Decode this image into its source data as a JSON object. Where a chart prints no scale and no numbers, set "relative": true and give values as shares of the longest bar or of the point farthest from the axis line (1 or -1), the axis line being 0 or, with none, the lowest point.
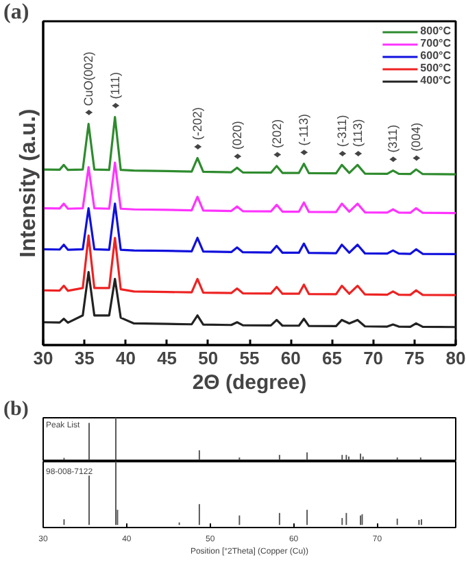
{
  "chart_data": [
    {
      "type": "line",
      "title": "(a)",
      "xlabel": "2Θ (degree)",
      "ylabel": "Intensity (a.u.)",
      "relative": true,
      "legend": "top right",
      "xlim": [
        30,
        80
      ],
      "xticks": [
        30,
        35,
        40,
        45,
        50,
        55,
        60,
        65,
        70,
        75,
        80
      ],
      "x": [
        30,
        32,
        32.5,
        33,
        34.8,
        35.5,
        36.2,
        38,
        38.7,
        39.4,
        41,
        45,
        48,
        48.7,
        49.4,
        52.8,
        53.5,
        54.2,
        57.6,
        58.3,
        59,
        61,
        61.6,
        62.2,
        65.5,
        66.2,
        67.1,
        68.1,
        69,
        71.7,
        72.4,
        73.1,
        74.5,
        75.2,
        76,
        80
      ],
      "series": [
        {
          "name": "800°C",
          "color": "#2e8b2e",
          "values": [
            0.77,
            0.769,
            0.79,
            0.768,
            0.77,
            0.97,
            0.77,
            0.768,
            1.0,
            0.768,
            0.765,
            0.763,
            0.761,
            0.82,
            0.76,
            0.758,
            0.778,
            0.757,
            0.756,
            0.785,
            0.755,
            0.755,
            0.795,
            0.754,
            0.753,
            0.79,
            0.755,
            0.79,
            0.752,
            0.751,
            0.765,
            0.751,
            0.75,
            0.77,
            0.75,
            0.749
          ]
        },
        {
          "name": "700°C",
          "color": "#ff33ff",
          "values": [
            0.6,
            0.599,
            0.62,
            0.598,
            0.6,
            0.78,
            0.6,
            0.598,
            0.8,
            0.598,
            0.595,
            0.593,
            0.591,
            0.65,
            0.59,
            0.588,
            0.608,
            0.587,
            0.586,
            0.615,
            0.585,
            0.585,
            0.625,
            0.584,
            0.583,
            0.62,
            0.585,
            0.62,
            0.582,
            0.581,
            0.595,
            0.581,
            0.58,
            0.6,
            0.58,
            0.579
          ]
        },
        {
          "name": "600°C",
          "color": "#1010dd",
          "values": [
            0.42,
            0.419,
            0.44,
            0.418,
            0.42,
            0.6,
            0.42,
            0.418,
            0.62,
            0.418,
            0.415,
            0.413,
            0.411,
            0.47,
            0.41,
            0.408,
            0.428,
            0.407,
            0.406,
            0.435,
            0.405,
            0.405,
            0.445,
            0.404,
            0.403,
            0.44,
            0.405,
            0.44,
            0.402,
            0.401,
            0.415,
            0.401,
            0.4,
            0.42,
            0.4,
            0.399
          ]
        },
        {
          "name": "500°C",
          "color": "#ee2222",
          "values": [
            0.24,
            0.239,
            0.26,
            0.238,
            0.25,
            0.48,
            0.25,
            0.25,
            0.47,
            0.245,
            0.235,
            0.233,
            0.231,
            0.29,
            0.23,
            0.228,
            0.248,
            0.227,
            0.226,
            0.255,
            0.225,
            0.225,
            0.265,
            0.224,
            0.223,
            0.26,
            0.225,
            0.26,
            0.222,
            0.221,
            0.235,
            0.221,
            0.22,
            0.24,
            0.22,
            0.219
          ]
        },
        {
          "name": "400°C",
          "color": "#222222",
          "values": [
            0.1,
            0.099,
            0.115,
            0.098,
            0.13,
            0.32,
            0.13,
            0.13,
            0.29,
            0.12,
            0.095,
            0.093,
            0.091,
            0.13,
            0.09,
            0.088,
            0.1,
            0.087,
            0.086,
            0.11,
            0.085,
            0.085,
            0.115,
            0.084,
            0.083,
            0.11,
            0.095,
            0.11,
            0.082,
            0.081,
            0.09,
            0.081,
            0.08,
            0.095,
            0.08,
            0.079
          ]
        }
      ],
      "annotations": [
        {
          "text": "♦ CuO(002)",
          "x": 35.5,
          "y": 0.97
        },
        {
          "text": "♦ (111)",
          "x": 38.7,
          "y": 1.0
        },
        {
          "text": "♦ (-202)",
          "x": 48.7,
          "y": 0.82
        },
        {
          "text": "♦ (020)",
          "x": 53.5,
          "y": 0.778
        },
        {
          "text": "♦ (202)",
          "x": 58.3,
          "y": 0.785
        },
        {
          "text": "♦ (-113)",
          "x": 61.6,
          "y": 0.795
        },
        {
          "text": "♦ (-311)",
          "x": 66.2,
          "y": 0.79
        },
        {
          "text": "♦ (113)",
          "x": 68.1,
          "y": 0.79
        },
        {
          "text": "♦ (311)",
          "x": 72.4,
          "y": 0.765
        },
        {
          "text": "♦ (004)",
          "x": 75.2,
          "y": 0.77
        }
      ]
    },
    {
      "type": "bar",
      "title": "(b)",
      "relative": true,
      "tick_labels": false,
      "xlim": [
        30,
        79.4
      ],
      "color": "#555555",
      "x": [
        32.5,
        35.5,
        38.7,
        48.7,
        53.5,
        58.3,
        61.6,
        65.8,
        66.3,
        66.6,
        68.0,
        68.3,
        72.4,
        75.2
      ],
      "values": [
        0.05,
        0.88,
        1.0,
        0.23,
        0.06,
        0.12,
        0.18,
        0.12,
        0.12,
        0.08,
        0.15,
        0.08,
        0.06,
        0.06
      ],
      "annotations": [
        "Peak List"
      ]
    },
    {
      "type": "bar",
      "relative": true,
      "tick_labels": "x",
      "xlim": [
        30,
        79.4
      ],
      "xticks": [
        30,
        40,
        50,
        60,
        70
      ],
      "xlabel": "Position [°2Theta] (Copper (Cu))",
      "color": "#555555",
      "x": [
        32.5,
        35.5,
        38.7,
        38.9,
        46.3,
        48.7,
        53.5,
        58.3,
        61.6,
        65.8,
        66.3,
        68.0,
        68.2,
        72.4,
        75.0,
        75.3
      ],
      "values": [
        0.09,
        0.78,
        1.0,
        0.24,
        0.04,
        0.33,
        0.15,
        0.19,
        0.24,
        0.11,
        0.19,
        0.15,
        0.17,
        0.1,
        0.08,
        0.09
      ],
      "annotations": [
        "98-008-7122"
      ]
    }
  ]
}
